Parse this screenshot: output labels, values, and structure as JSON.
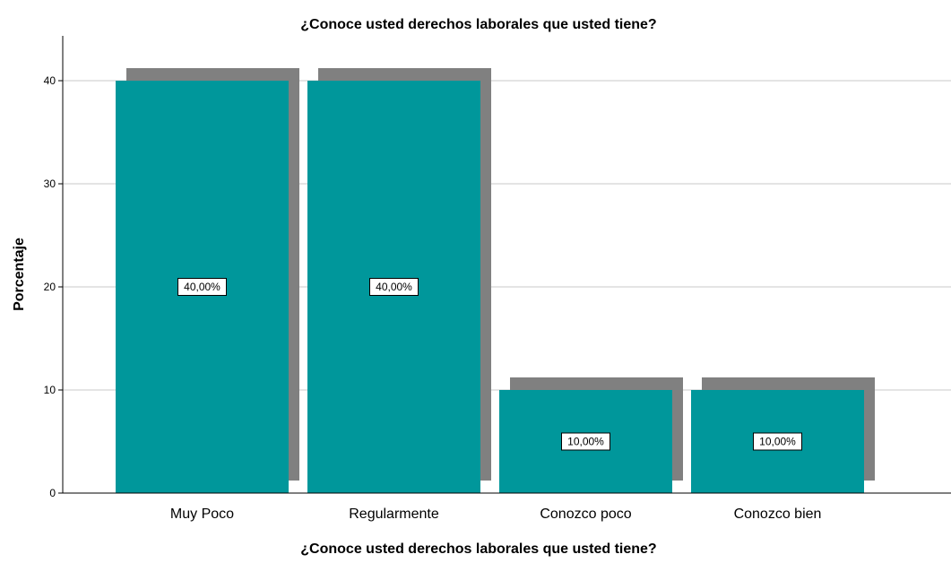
{
  "chart_data": {
    "type": "bar",
    "title": "¿Conoce usted derechos laborales que usted tiene?",
    "xlabel": "¿Conoce usted derechos laborales que usted tiene?",
    "ylabel": "Porcentaje",
    "categories": [
      "Muy Poco",
      "Regularmente",
      "Conozco poco",
      "Conozco bien"
    ],
    "values": [
      40,
      40,
      10,
      10
    ],
    "data_labels": [
      "40,00%",
      "40,00%",
      "10,00%",
      "10,00%"
    ],
    "ylim": [
      0,
      44
    ],
    "yticks": [
      0,
      10,
      20,
      30,
      40
    ],
    "ytick_labels": [
      "0",
      "10",
      "20",
      "30",
      "40"
    ],
    "grid": true,
    "bar_color": "#00979B",
    "shadow_color": "#808080",
    "grid_color": "#C8C8C8"
  }
}
